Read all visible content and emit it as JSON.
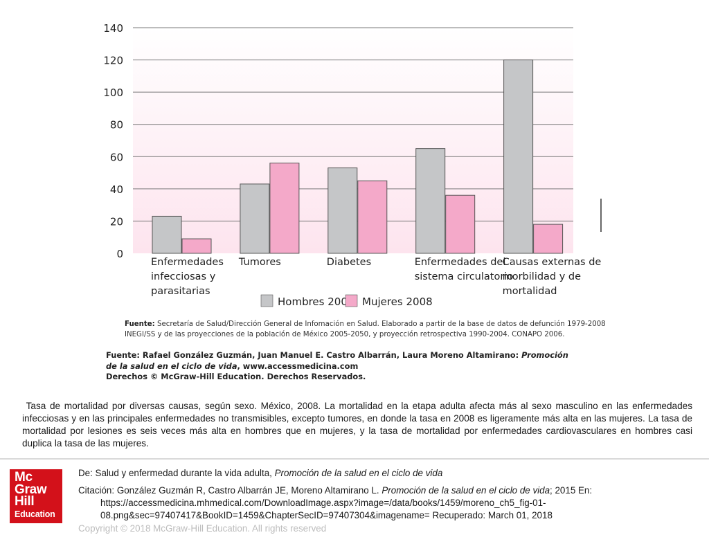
{
  "chart_data": {
    "type": "bar",
    "categories": [
      [
        "Enfermedades",
        "infecciosas y",
        "parasitarias"
      ],
      [
        "Tumores"
      ],
      [
        "Diabetes"
      ],
      [
        "Enfermedades del",
        "sistema circulatorio"
      ],
      [
        "Causas externas de",
        "morbilidad y de",
        "mortalidad"
      ]
    ],
    "series": [
      {
        "name": "Hombres 2008",
        "values": [
          23,
          43,
          53,
          65,
          120
        ]
      },
      {
        "name": "Mujeres 2008",
        "values": [
          9,
          56,
          45,
          36,
          18
        ]
      }
    ],
    "colors": {
      "hombres": "#c5c6c8",
      "mujeres": "#f4a9c9",
      "bar_edge": "#555555",
      "gradient_top": "#ffffff",
      "gradient_bottom": "#fde4ee"
    },
    "yticks": [
      0,
      20,
      40,
      60,
      80,
      100,
      120,
      140
    ],
    "ylim": [
      0,
      140
    ],
    "grid": true,
    "legend_position": "bottom"
  },
  "figure": {
    "source_label": "Fuente:",
    "source_text": "Secretaría de Salud/Dirección General de Infomación en Salud. Elaborado a partir de la base de datos de defunción 1979-2008 INEGI/SS y de las proyecciones de la población de México 2005-2050, y proyección retrospectiva 1990-2004. CONAPO 2006.",
    "credit_prefix": "Fuente: Rafael González Guzmán, Juan Manuel E. Castro Albarrán, Laura Moreno Altamirano: ",
    "credit_book": "Promoción de la salud en el ciclo de vida",
    "credit_site": ", www.accessmedicina.com",
    "credit_rights": "Derechos © McGraw-Hill Education. Derechos Reservados."
  },
  "caption": "Tasa de mortalidad por diversas causas, según sexo. México, 2008. La mortalidad en la etapa adulta afecta más al sexo masculino en las enfermedades infecciosas y en las principales enfermedades no transmisibles, excepto tumores, en donde la tasa en 2008 es ligeramente más alta en las mujeres. La tasa de mortalidad por lesiones es seis veces más alta en hombres que en mujeres, y la tasa de mortalidad por enfermedades cardiovasculares en hombres casi duplica la tasa de las mujeres.",
  "footer": {
    "logo_lines": [
      "Mc",
      "Graw",
      "Hill",
      "Education"
    ],
    "from_prefix": "De: Salud y enfermedad durante la vida adulta, ",
    "from_book": "Promoción de la salud en el ciclo de vida",
    "cite_prefix": "Citación: González Guzmán R, Castro Albarrán JE, Moreno Altamirano L. ",
    "cite_book": "Promoción de la salud en el ciclo de vida",
    "cite_rest": "; 2015 En: https://accessmedicina.mhmedical.com/DownloadImage.aspx?image=/data/books/1459/moreno_ch5_fig-01-08.png&sec=97407417&BookID=1459&ChapterSecID=97407304&imagename= Recuperado: March 01, 2018",
    "copyright": "Copyright © 2018 McGraw-Hill Education. All rights reserved"
  }
}
